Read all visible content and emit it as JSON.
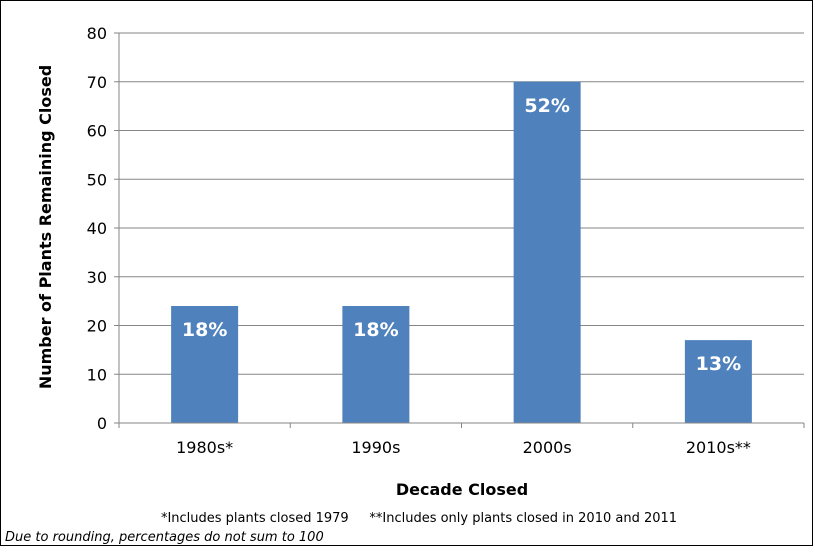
{
  "chart_data": {
    "type": "bar",
    "title": "",
    "xlabel": "Decade Closed",
    "ylabel": "Number of Plants Remaining Closed",
    "categories": [
      "1980s*",
      "1990s",
      "2000s",
      "2010s**"
    ],
    "values": [
      24,
      24,
      70,
      17
    ],
    "data_labels": [
      "18%",
      "18%",
      "52%",
      "13%"
    ],
    "ylim": [
      0,
      80
    ],
    "yticks": [
      0,
      10,
      20,
      30,
      40,
      50,
      60,
      70,
      80
    ],
    "grid": true,
    "legend": "none",
    "colors": {
      "bar": "#4F81BD",
      "grid": "#868686",
      "text": "#000000",
      "label": "#ffffff"
    }
  },
  "notes": {
    "footnote": "*Includes plants closed 1979     **Includes only plants closed in 2010 and 2011",
    "rounding": "Due to rounding, percentages do not sum to 100"
  }
}
